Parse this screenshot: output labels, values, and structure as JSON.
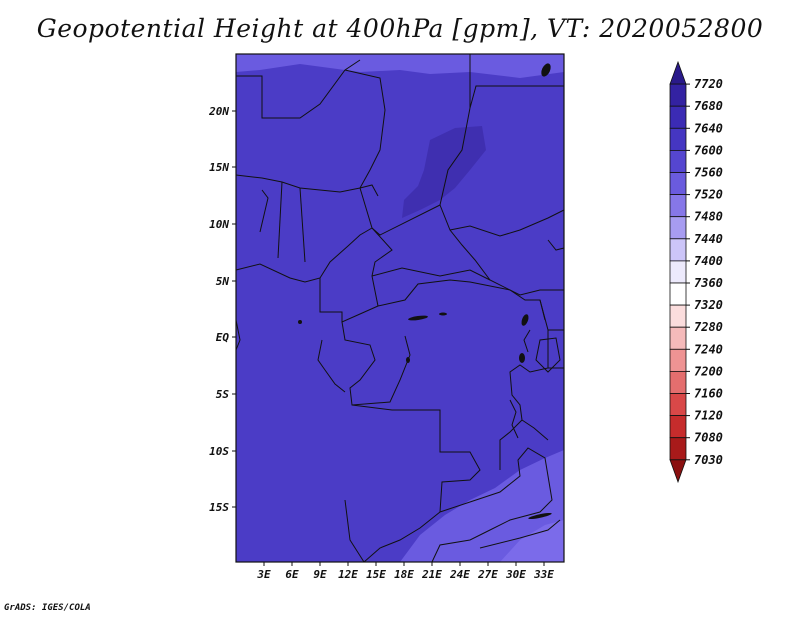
{
  "title": "Geopotential Height at 400hPa [gpm], VT: 2020052800",
  "footer": "GrADS: IGES/COLA",
  "map": {
    "lat_labels": [
      "20N",
      "15N",
      "10N",
      "5N",
      "EQ",
      "5S",
      "10S",
      "15S"
    ],
    "lon_labels": [
      "3E",
      "6E",
      "9E",
      "12E",
      "15E",
      "18E",
      "21E",
      "24E",
      "27E",
      "30E",
      "33E"
    ],
    "colors": {
      "field_main": "#4B3CC6",
      "field_high": "#3F2FB0",
      "field_low": "#6A5BE0",
      "field_lower": "#7B6BEA",
      "border": "#111111"
    }
  },
  "colorbar": {
    "levels": [
      "7720",
      "7680",
      "7640",
      "7600",
      "7560",
      "7520",
      "7480",
      "7440",
      "7400",
      "7360",
      "7320",
      "7280",
      "7240",
      "7200",
      "7160",
      "7120",
      "7080",
      "7030"
    ],
    "colors": [
      "#2A1A8A",
      "#3322A2",
      "#3B2BB4",
      "#4536C2",
      "#5546D0",
      "#6A5BDE",
      "#8677E8",
      "#A79CF1",
      "#CCC5F8",
      "#EDEAFC",
      "#FFFFFF",
      "#FBDDDD",
      "#F5BABA",
      "#EE9393",
      "#E46E6E",
      "#D94848",
      "#C62C2C",
      "#A81A1A",
      "#8A1010"
    ]
  }
}
